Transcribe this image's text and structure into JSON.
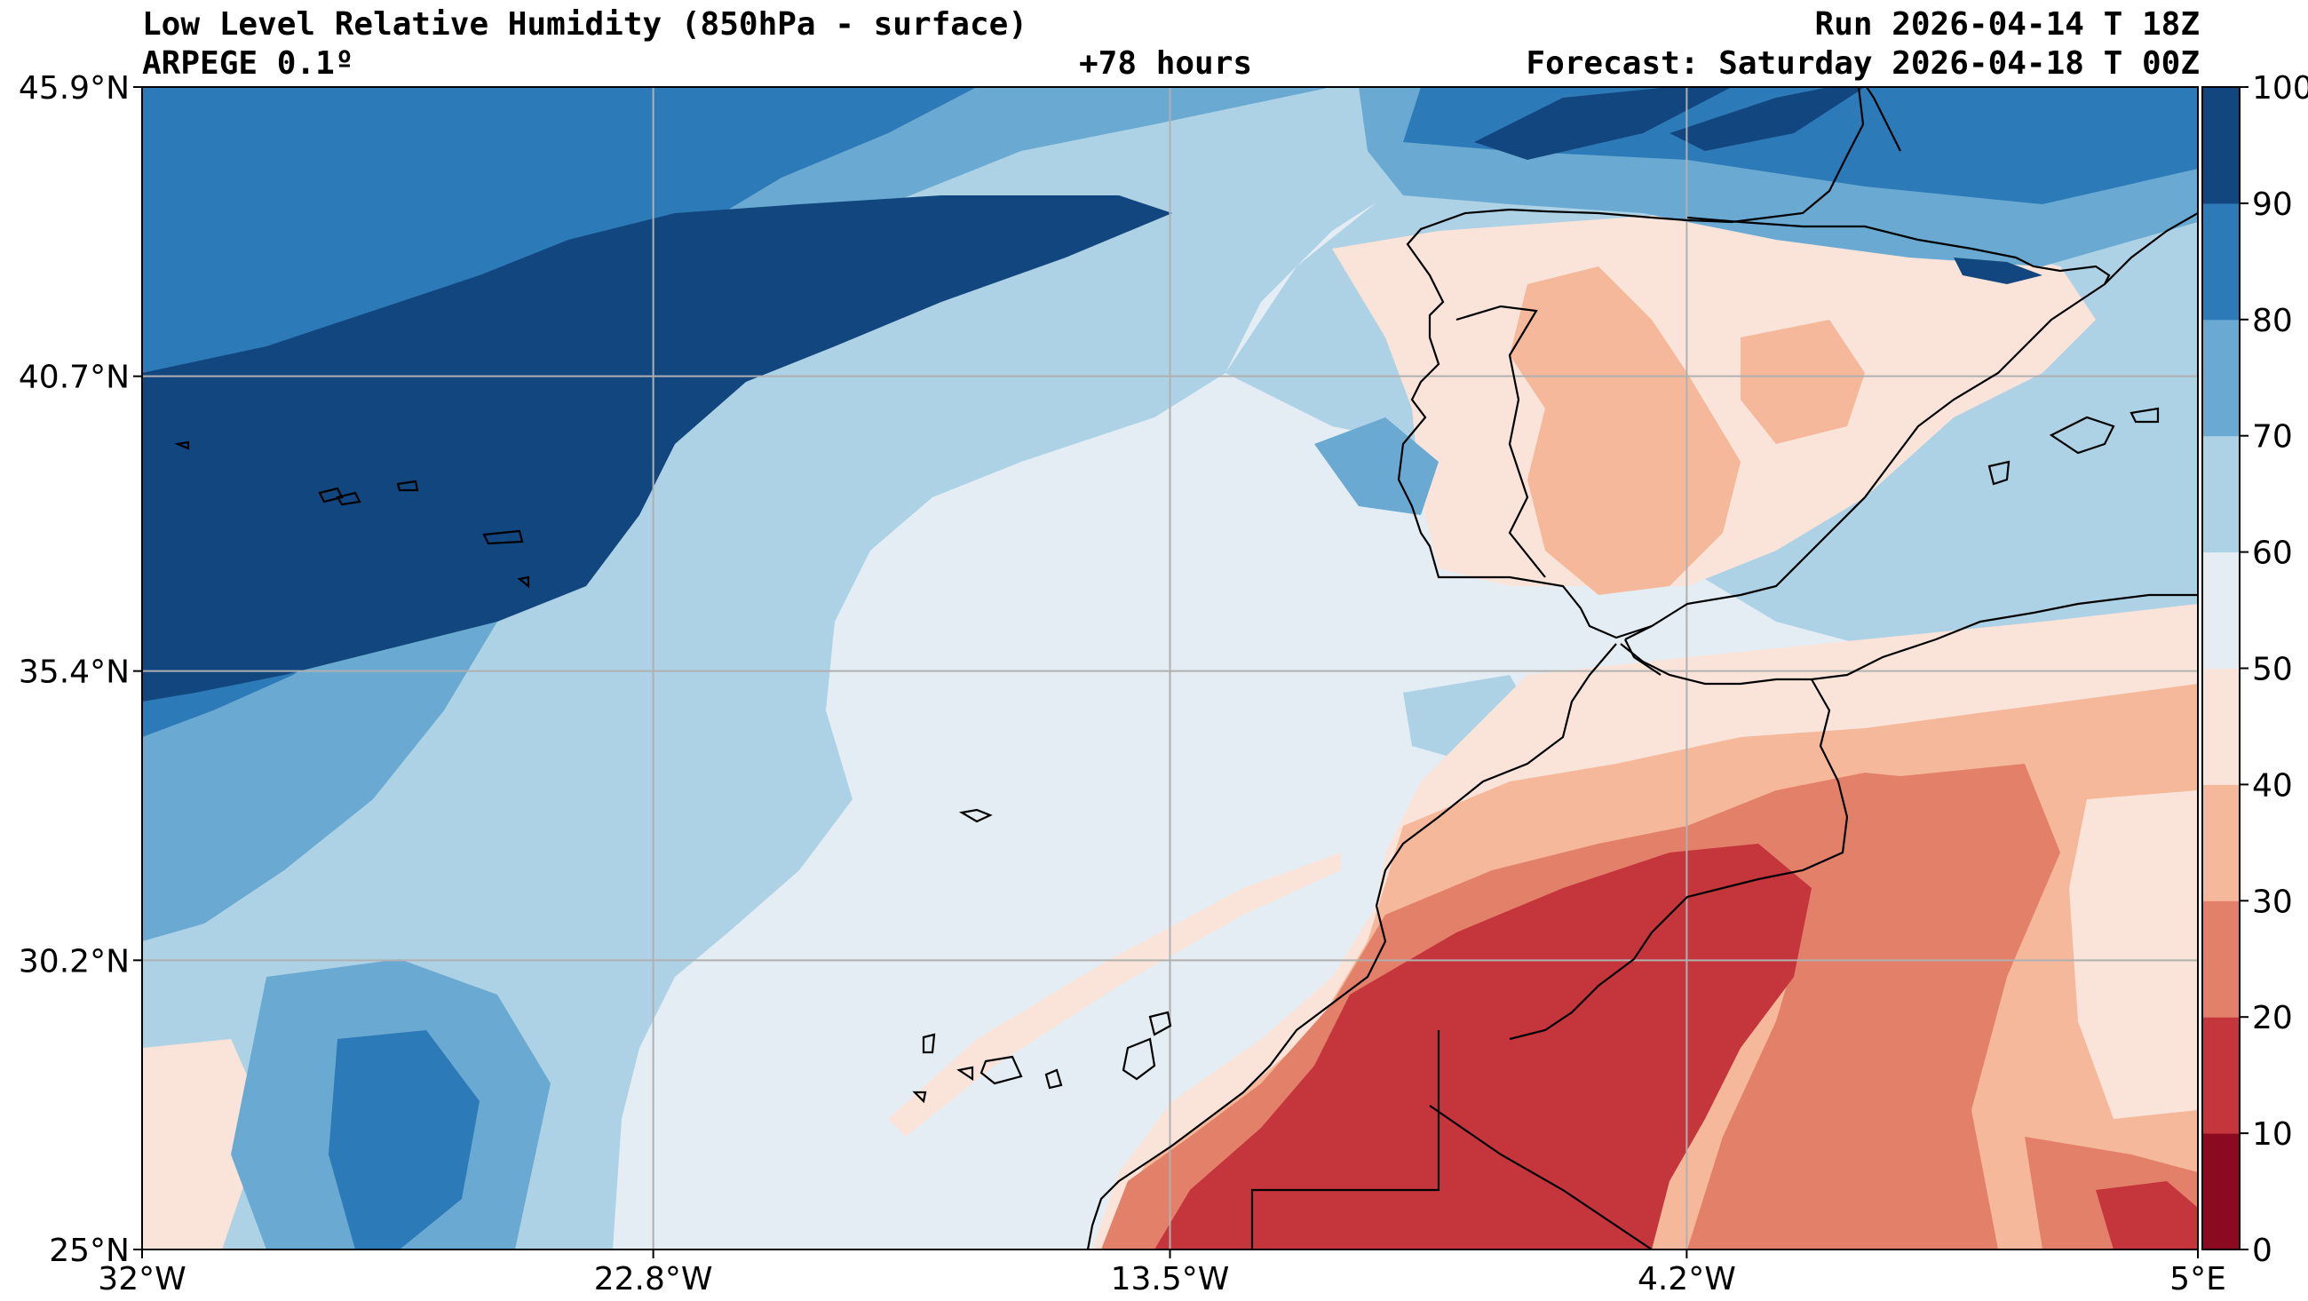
{
  "header": {
    "title": "Low Level Relative Humidity (850hPa - surface)",
    "model": "ARPEGE 0.1º",
    "lead_time": "+78 hours",
    "run": "Run 2026-04-14 T 18Z",
    "forecast": "Forecast: Saturday 2026-04-18 T 00Z"
  },
  "map": {
    "lon_range": [
      -32,
      5
    ],
    "lat_range": [
      25,
      45.9
    ],
    "lon_ticks": [
      {
        "value": -32,
        "label": "32°W"
      },
      {
        "value": -22.8,
        "label": "22.8°W"
      },
      {
        "value": -13.5,
        "label": "13.5°W"
      },
      {
        "value": -4.2,
        "label": "4.2°W"
      },
      {
        "value": 5,
        "label": "5°E"
      }
    ],
    "lat_ticks": [
      {
        "value": 45.9,
        "label": "45.9°N"
      },
      {
        "value": 40.7,
        "label": "40.7°N"
      },
      {
        "value": 35.4,
        "label": "35.4°N"
      },
      {
        "value": 30.2,
        "label": "30.2°N"
      },
      {
        "value": 25,
        "label": "25°N"
      }
    ]
  },
  "colorbar": {
    "levels": [
      {
        "label": "0",
        "color": "#8c0a20"
      },
      {
        "label": "10",
        "color": "#c4363c"
      },
      {
        "label": "20",
        "color": "#e3806a"
      },
      {
        "label": "30",
        "color": "#f5b89a"
      },
      {
        "label": "40",
        "color": "#fae4d9"
      },
      {
        "label": "50",
        "color": "#e4edf4"
      },
      {
        "label": "60",
        "color": "#aed2e5"
      },
      {
        "label": "70",
        "color": "#6aaad2"
      },
      {
        "label": "80",
        "color": "#2c7ab7"
      },
      {
        "label": "90",
        "color": "#12467f"
      },
      {
        "label": "100",
        "color": null
      }
    ]
  }
}
